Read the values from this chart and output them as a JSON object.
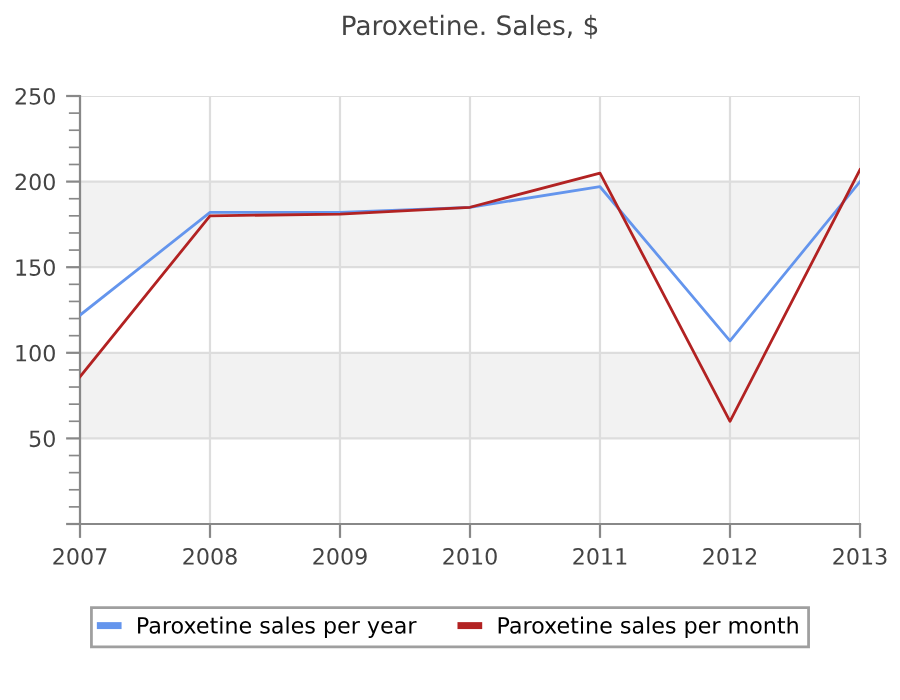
{
  "chart_data": {
    "type": "line",
    "title": "Paroxetine. Sales, $",
    "x": [
      2007,
      2008,
      2009,
      2010,
      2011,
      2012,
      2013
    ],
    "series": [
      {
        "name": "Paroxetine sales per year",
        "color": "#6495ed",
        "values": [
          122,
          182,
          182,
          185,
          197,
          107,
          200
        ]
      },
      {
        "name": "Paroxetine sales per month",
        "color": "#b22222",
        "values": [
          86,
          180,
          181,
          185,
          205,
          60,
          207
        ]
      }
    ],
    "xlim": [
      2007,
      2013
    ],
    "xticks": [
      2007,
      2008,
      2009,
      2010,
      2011,
      2012,
      2013
    ],
    "ylim": [
      0,
      250
    ],
    "yticks": [
      {
        "value": 0,
        "label": null
      },
      50,
      100,
      150,
      200,
      250
    ],
    "bands": [
      {
        "axis": "y",
        "from": 50,
        "to": 100,
        "color": "#f2f2f2"
      },
      {
        "axis": "y",
        "from": 150,
        "to": 200,
        "color": "#f2f2f2"
      }
    ],
    "grid": true,
    "legend": "bottom",
    "marker": "none",
    "line_style": "solid"
  }
}
